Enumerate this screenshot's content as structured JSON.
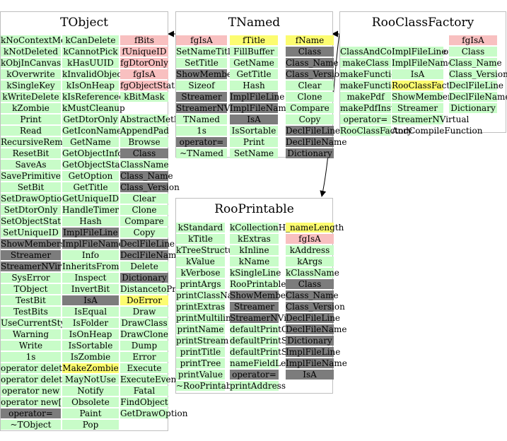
{
  "classes": [
    {
      "id": "tobject",
      "name": "TObject",
      "columns": [
        [
          {
            "t": "kNoContextMenu",
            "c": "green"
          },
          {
            "t": "kNotDeleted",
            "c": "green"
          },
          {
            "t": "kObjInCanvas",
            "c": "green"
          },
          {
            "t": "kOverwrite",
            "c": "green"
          },
          {
            "t": "kSingleKey",
            "c": "green"
          },
          {
            "t": "kWriteDelete",
            "c": "green"
          },
          {
            "t": "kZombie",
            "c": "green"
          },
          {
            "t": "Print",
            "c": "green"
          },
          {
            "t": "Read",
            "c": "green"
          },
          {
            "t": "RecursiveRemove",
            "c": "green"
          },
          {
            "t": "ResetBit",
            "c": "green"
          },
          {
            "t": "SaveAs",
            "c": "green"
          },
          {
            "t": "SavePrimitive",
            "c": "green"
          },
          {
            "t": "SetBit",
            "c": "green"
          },
          {
            "t": "SetDrawOption",
            "c": "green"
          },
          {
            "t": "SetDtorOnly",
            "c": "green"
          },
          {
            "t": "SetObjectStat",
            "c": "green"
          },
          {
            "t": "SetUniqueID",
            "c": "green"
          },
          {
            "t": "ShowMembers",
            "c": "gray"
          },
          {
            "t": "Streamer",
            "c": "gray"
          },
          {
            "t": "StreamerNVirtual",
            "c": "gray"
          },
          {
            "t": "SysError",
            "c": "green"
          },
          {
            "t": "TObject",
            "c": "green"
          },
          {
            "t": "TestBit",
            "c": "green"
          },
          {
            "t": "TestBits",
            "c": "green"
          },
          {
            "t": "UseCurrentStyle",
            "c": "green"
          },
          {
            "t": "Warning",
            "c": "green"
          },
          {
            "t": "Write",
            "c": "green"
          },
          {
            "t": "1s",
            "c": "green"
          },
          {
            "t": "operator delete",
            "c": "green"
          },
          {
            "t": "operator delete[]",
            "c": "green"
          },
          {
            "t": "operator new",
            "c": "green"
          },
          {
            "t": "operator new[]",
            "c": "green"
          },
          {
            "t": "operator=",
            "c": "gray"
          },
          {
            "t": "~TObject",
            "c": "green"
          }
        ],
        [
          {
            "t": "kCanDelete",
            "c": "green"
          },
          {
            "t": "kCannotPick",
            "c": "green"
          },
          {
            "t": "kHasUUID",
            "c": "green"
          },
          {
            "t": "kInvalidObject",
            "c": "green"
          },
          {
            "t": "kIsOnHeap",
            "c": "green"
          },
          {
            "t": "kIsReferenced",
            "c": "green"
          },
          {
            "t": "kMustCleanup",
            "c": "green"
          },
          {
            "t": "GetDtorOnly",
            "c": "green"
          },
          {
            "t": "GetIconName",
            "c": "green"
          },
          {
            "t": "GetName",
            "c": "green"
          },
          {
            "t": "GetObjectInfo",
            "c": "green"
          },
          {
            "t": "GetObjectStat",
            "c": "green"
          },
          {
            "t": "GetOption",
            "c": "green"
          },
          {
            "t": "GetTitle",
            "c": "green"
          },
          {
            "t": "GetUniqueID",
            "c": "green"
          },
          {
            "t": "HandleTimer",
            "c": "green"
          },
          {
            "t": "Hash",
            "c": "green"
          },
          {
            "t": "ImplFileLine",
            "c": "gray"
          },
          {
            "t": "ImplFileName",
            "c": "gray"
          },
          {
            "t": "Info",
            "c": "green"
          },
          {
            "t": "InheritsFrom",
            "c": "green"
          },
          {
            "t": "Inspect",
            "c": "green"
          },
          {
            "t": "InvertBit",
            "c": "green"
          },
          {
            "t": "IsA",
            "c": "gray"
          },
          {
            "t": "IsEqual",
            "c": "green"
          },
          {
            "t": "IsFolder",
            "c": "green"
          },
          {
            "t": "IsOnHeap",
            "c": "green"
          },
          {
            "t": "IsSortable",
            "c": "green"
          },
          {
            "t": "IsZombie",
            "c": "green"
          },
          {
            "t": "MakeZombie",
            "c": "yellow"
          },
          {
            "t": "MayNotUse",
            "c": "green"
          },
          {
            "t": "Notify",
            "c": "green"
          },
          {
            "t": "Obsolete",
            "c": "green"
          },
          {
            "t": "Paint",
            "c": "green"
          },
          {
            "t": "Pop",
            "c": "green"
          }
        ],
        [
          {
            "t": "fBits",
            "c": "pink"
          },
          {
            "t": "fUniqueID",
            "c": "pink"
          },
          {
            "t": "fgDtorOnly",
            "c": "pink"
          },
          {
            "t": "fgIsA",
            "c": "pink"
          },
          {
            "t": "fgObjectStat",
            "c": "pink"
          },
          {
            "t": "kBitMask",
            "c": "green"
          },
          {
            "t": "",
            "c": "none"
          },
          {
            "t": "AbstractMethod",
            "c": "green"
          },
          {
            "t": "AppendPad",
            "c": "green"
          },
          {
            "t": "Browse",
            "c": "green"
          },
          {
            "t": "Class",
            "c": "gray"
          },
          {
            "t": "ClassName",
            "c": "green"
          },
          {
            "t": "Class_Name",
            "c": "gray"
          },
          {
            "t": "Class_Version",
            "c": "gray"
          },
          {
            "t": "Clear",
            "c": "green"
          },
          {
            "t": "Clone",
            "c": "green"
          },
          {
            "t": "Compare",
            "c": "green"
          },
          {
            "t": "Copy",
            "c": "green"
          },
          {
            "t": "DeclFileLine",
            "c": "gray"
          },
          {
            "t": "DeclFileName",
            "c": "gray"
          },
          {
            "t": "Delete",
            "c": "green"
          },
          {
            "t": "Dictionary",
            "c": "gray"
          },
          {
            "t": "DistancetoPrimitive",
            "c": "green"
          },
          {
            "t": "DoError",
            "c": "yellow"
          },
          {
            "t": "Draw",
            "c": "green"
          },
          {
            "t": "DrawClass",
            "c": "green"
          },
          {
            "t": "DrawClone",
            "c": "green"
          },
          {
            "t": "Dump",
            "c": "green"
          },
          {
            "t": "Error",
            "c": "green"
          },
          {
            "t": "Execute",
            "c": "green"
          },
          {
            "t": "ExecuteEvent",
            "c": "green"
          },
          {
            "t": "Fatal",
            "c": "green"
          },
          {
            "t": "FindObject",
            "c": "green"
          },
          {
            "t": "GetDrawOption",
            "c": "green"
          }
        ]
      ]
    },
    {
      "id": "tnamed",
      "name": "TNamed",
      "columns": [
        [
          {
            "t": "fgIsA",
            "c": "pink"
          },
          {
            "t": "SetNameTitle",
            "c": "green"
          },
          {
            "t": "SetTitle",
            "c": "green"
          },
          {
            "t": "ShowMembers",
            "c": "gray"
          },
          {
            "t": "Sizeof",
            "c": "green"
          },
          {
            "t": "Streamer",
            "c": "gray"
          },
          {
            "t": "StreamerNVirtual",
            "c": "gray"
          },
          {
            "t": "TNamed",
            "c": "green"
          },
          {
            "t": "1s",
            "c": "green"
          },
          {
            "t": "operator=",
            "c": "gray"
          },
          {
            "t": "~TNamed",
            "c": "green"
          }
        ],
        [
          {
            "t": "fTitle",
            "c": "yellow"
          },
          {
            "t": "FillBuffer",
            "c": "green"
          },
          {
            "t": "GetName",
            "c": "green"
          },
          {
            "t": "GetTitle",
            "c": "green"
          },
          {
            "t": "Hash",
            "c": "green"
          },
          {
            "t": "ImplFileLine",
            "c": "gray"
          },
          {
            "t": "ImplFileName",
            "c": "gray"
          },
          {
            "t": "IsA",
            "c": "gray"
          },
          {
            "t": "IsSortable",
            "c": "green"
          },
          {
            "t": "Print",
            "c": "green"
          },
          {
            "t": "SetName",
            "c": "green"
          }
        ],
        [
          {
            "t": "fName",
            "c": "yellow"
          },
          {
            "t": "Class",
            "c": "gray"
          },
          {
            "t": "Class_Name",
            "c": "gray"
          },
          {
            "t": "Class_Version",
            "c": "gray"
          },
          {
            "t": "Clear",
            "c": "green"
          },
          {
            "t": "Clone",
            "c": "green"
          },
          {
            "t": "Compare",
            "c": "green"
          },
          {
            "t": "Copy",
            "c": "green"
          },
          {
            "t": "DeclFileLine",
            "c": "gray"
          },
          {
            "t": "DeclFileName",
            "c": "gray"
          },
          {
            "t": "Dictionary",
            "c": "gray"
          }
        ]
      ]
    },
    {
      "id": "roofactory",
      "name": "RooClassFactory",
      "columns": [
        [
          {
            "t": "",
            "c": "none"
          },
          {
            "t": "ClassAndCompileFunction",
            "c": "green"
          },
          {
            "t": "makeClass",
            "c": "green"
          },
          {
            "t": "makeFunction",
            "c": "green"
          },
          {
            "t": "makeFunctionInstance",
            "c": "green"
          },
          {
            "t": "makePdf",
            "c": "green"
          },
          {
            "t": "makePdfInstance",
            "c": "green"
          },
          {
            "t": "operator=",
            "c": "green"
          },
          {
            "t": "RooClassFactory",
            "c": "green"
          }
        ],
        [
          {
            "t": "",
            "c": "none"
          },
          {
            "t": "ImplFileLine",
            "c": "green"
          },
          {
            "t": "ImplFileName",
            "c": "green"
          },
          {
            "t": "IsA",
            "c": "green"
          },
          {
            "t": "RooClassFactory",
            "c": "yellow"
          },
          {
            "t": "ShowMembers",
            "c": "green"
          },
          {
            "t": "Streamer",
            "c": "green"
          },
          {
            "t": "StreamerNVirtual",
            "c": "green"
          },
          {
            "t": "AndCompileFunction",
            "c": "none"
          }
        ],
        [
          {
            "t": "fgIsA",
            "c": "pink"
          },
          {
            "t": "Class",
            "c": "green"
          },
          {
            "t": "Class_Name",
            "c": "green"
          },
          {
            "t": "Class_Version",
            "c": "green"
          },
          {
            "t": "DeclFileLine",
            "c": "green"
          },
          {
            "t": "DeclFileName",
            "c": "green"
          },
          {
            "t": "Dictionary",
            "c": "green"
          }
        ]
      ]
    },
    {
      "id": "rooprintable",
      "name": "RooPrintable",
      "columns": [
        [
          {
            "t": "kStandard",
            "c": "green"
          },
          {
            "t": "kTitle",
            "c": "green"
          },
          {
            "t": "kTreeStructure",
            "c": "green"
          },
          {
            "t": "kValue",
            "c": "green"
          },
          {
            "t": "kVerbose",
            "c": "green"
          },
          {
            "t": "printArgs",
            "c": "green"
          },
          {
            "t": "printClassName",
            "c": "green"
          },
          {
            "t": "printExtras",
            "c": "green"
          },
          {
            "t": "printMultiline",
            "c": "green"
          },
          {
            "t": "printName",
            "c": "green"
          },
          {
            "t": "printStream",
            "c": "green"
          },
          {
            "t": "printTitle",
            "c": "green"
          },
          {
            "t": "printTree",
            "c": "green"
          },
          {
            "t": "printValue",
            "c": "green"
          },
          {
            "t": "~RooPrintable",
            "c": "green"
          }
        ],
        [
          {
            "t": "kCollectionHeader",
            "c": "green"
          },
          {
            "t": "kExtras",
            "c": "green"
          },
          {
            "t": "kInline",
            "c": "green"
          },
          {
            "t": "kName",
            "c": "green"
          },
          {
            "t": "kSingleLine",
            "c": "green"
          },
          {
            "t": "RooPrintable",
            "c": "green"
          },
          {
            "t": "ShowMembers",
            "c": "gray"
          },
          {
            "t": "Streamer",
            "c": "gray"
          },
          {
            "t": "StreamerNVirtual",
            "c": "gray"
          },
          {
            "t": "defaultPrintContents",
            "c": "green"
          },
          {
            "t": "defaultPrintStream",
            "c": "green"
          },
          {
            "t": "defaultPrintStyle",
            "c": "green"
          },
          {
            "t": "nameFieldLength",
            "c": "green"
          },
          {
            "t": "operator=",
            "c": "gray"
          },
          {
            "t": "printAddress",
            "c": "green"
          }
        ],
        [
          {
            "t": "_nameLength",
            "c": "yellow"
          },
          {
            "t": "fgIsA",
            "c": "pink"
          },
          {
            "t": "kAddress",
            "c": "green"
          },
          {
            "t": "kArgs",
            "c": "green"
          },
          {
            "t": "kClassName",
            "c": "green"
          },
          {
            "t": "Class",
            "c": "gray"
          },
          {
            "t": "Class_Name",
            "c": "gray"
          },
          {
            "t": "Class_Version",
            "c": "gray"
          },
          {
            "t": "DeclFileLine",
            "c": "gray"
          },
          {
            "t": "DeclFileName",
            "c": "gray"
          },
          {
            "t": "Dictionary",
            "c": "gray"
          },
          {
            "t": "ImplFileLine",
            "c": "gray"
          },
          {
            "t": "ImplFileName",
            "c": "gray"
          },
          {
            "t": "IsA",
            "c": "gray"
          }
        ]
      ]
    }
  ],
  "colors": {
    "green": "#c8fcc8",
    "pink": "#f8c0c0",
    "yellow": "#fcfc70",
    "gray": "#7c7c7c",
    "border": "#bfbfbf",
    "edge": "#000000"
  }
}
